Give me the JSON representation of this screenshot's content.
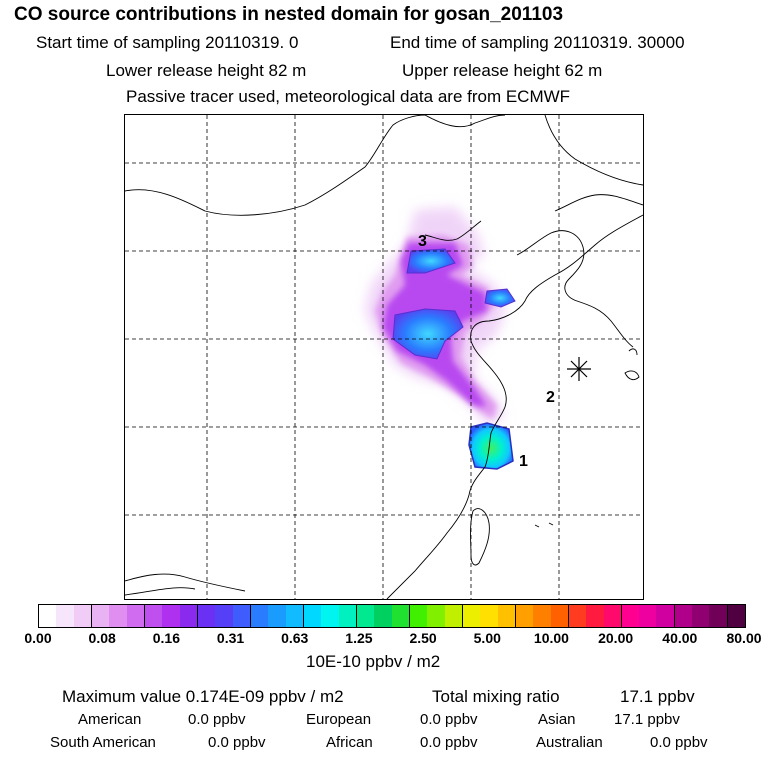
{
  "header": {
    "title": "CO  source contributions in nested domain for gosan_201103",
    "line_start": "Start time of sampling 20110319.     0",
    "line_end": "End time of sampling 20110319. 30000",
    "line_lower": "Lower release height   82 m",
    "line_upper": "Upper release height   62 m",
    "line_tracer": "Passive tracer used, meteorological data are from ECMWF"
  },
  "map": {
    "receptor_icon": "asterisk-marker-icon",
    "labels": [
      "1",
      "2",
      "3"
    ]
  },
  "colorbar": {
    "colors": [
      "#ffffff",
      "#f7e6fb",
      "#f0ccf7",
      "#e8b2f3",
      "#e08ff0",
      "#d06cf0",
      "#c04ff0",
      "#b030f0",
      "#8a2aee",
      "#6a30f4",
      "#5540f8",
      "#3f5cfc",
      "#2a7cff",
      "#1a9cff",
      "#10bcff",
      "#00d8ff",
      "#00f4f0",
      "#00f0c0",
      "#00e890",
      "#00d060",
      "#20e030",
      "#40f000",
      "#80f000",
      "#c0f000",
      "#ecf000",
      "#ffe000",
      "#ffc000",
      "#ffa000",
      "#ff8000",
      "#ff6000",
      "#ff3c20",
      "#ff1a40",
      "#ff0a6c",
      "#ff0090",
      "#ee00a0",
      "#d000a0",
      "#b0008a",
      "#900070",
      "#700058",
      "#500040"
    ],
    "ticks": [
      "0.00",
      "0.08",
      "0.16",
      "0.31",
      "0.63",
      "1.25",
      "2.50",
      "5.00",
      "10.00",
      "20.00",
      "40.00",
      "80.00"
    ],
    "units": "10E-10 ppbv / m2"
  },
  "footer": {
    "max_label": "Maximum value  0.174E-09 ppbv / m2",
    "total_label": "Total mixing ratio",
    "total_value": "17.1 ppbv",
    "regions": [
      {
        "name": "American",
        "value": "0.0 ppbv"
      },
      {
        "name": "European",
        "value": "0.0 ppbv"
      },
      {
        "name": "Asian",
        "value": "17.1 ppbv"
      },
      {
        "name": "South American",
        "value": "0.0 ppbv"
      },
      {
        "name": "African",
        "value": "0.0 ppbv"
      },
      {
        "name": "Australian",
        "value": "0.0 ppbv"
      }
    ]
  }
}
